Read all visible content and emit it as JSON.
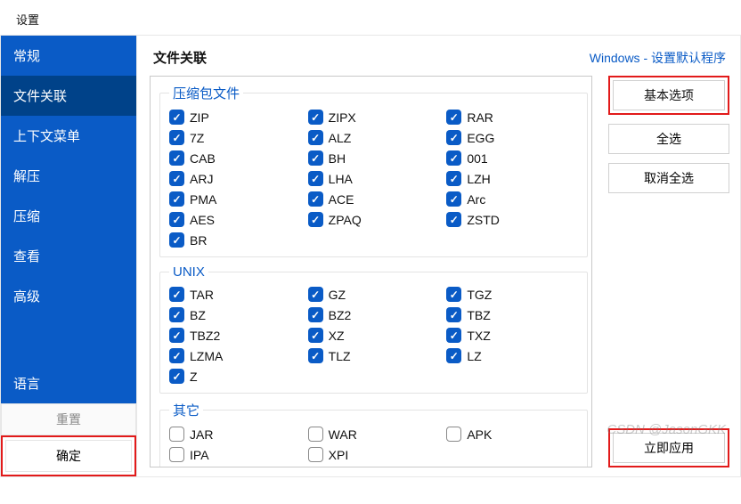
{
  "window": {
    "title": "设置"
  },
  "sidebar": {
    "items": [
      {
        "label": "常规"
      },
      {
        "label": "文件关联"
      },
      {
        "label": "上下文菜单"
      },
      {
        "label": "解压"
      },
      {
        "label": "压缩"
      },
      {
        "label": "查看"
      },
      {
        "label": "高级"
      }
    ],
    "active_index": 1,
    "language_label": "语言",
    "reset_label": "重置",
    "ok_label": "确定"
  },
  "main": {
    "title": "文件关联",
    "link_label": "Windows - 设置默认程序",
    "groups": [
      {
        "legend": "压缩包文件",
        "items": [
          {
            "label": "ZIP",
            "checked": true
          },
          {
            "label": "ZIPX",
            "checked": true
          },
          {
            "label": "RAR",
            "checked": true
          },
          {
            "label": "7Z",
            "checked": true
          },
          {
            "label": "ALZ",
            "checked": true
          },
          {
            "label": "EGG",
            "checked": true
          },
          {
            "label": "CAB",
            "checked": true
          },
          {
            "label": "BH",
            "checked": true
          },
          {
            "label": "001",
            "checked": true
          },
          {
            "label": "ARJ",
            "checked": true
          },
          {
            "label": "LHA",
            "checked": true
          },
          {
            "label": "LZH",
            "checked": true
          },
          {
            "label": "PMA",
            "checked": true
          },
          {
            "label": "ACE",
            "checked": true
          },
          {
            "label": "Arc",
            "checked": true
          },
          {
            "label": "AES",
            "checked": true
          },
          {
            "label": "ZPAQ",
            "checked": true
          },
          {
            "label": "ZSTD",
            "checked": true
          },
          {
            "label": "BR",
            "checked": true
          }
        ]
      },
      {
        "legend": "UNIX",
        "items": [
          {
            "label": "TAR",
            "checked": true
          },
          {
            "label": "GZ",
            "checked": true
          },
          {
            "label": "TGZ",
            "checked": true
          },
          {
            "label": "BZ",
            "checked": true
          },
          {
            "label": "BZ2",
            "checked": true
          },
          {
            "label": "TBZ",
            "checked": true
          },
          {
            "label": "TBZ2",
            "checked": true
          },
          {
            "label": "XZ",
            "checked": true
          },
          {
            "label": "TXZ",
            "checked": true
          },
          {
            "label": "LZMA",
            "checked": true
          },
          {
            "label": "TLZ",
            "checked": true
          },
          {
            "label": "LZ",
            "checked": true
          },
          {
            "label": "Z",
            "checked": true
          }
        ]
      },
      {
        "legend": "其它",
        "items": [
          {
            "label": "JAR",
            "checked": false
          },
          {
            "label": "WAR",
            "checked": false
          },
          {
            "label": "APK",
            "checked": false
          },
          {
            "label": "IPA",
            "checked": false
          },
          {
            "label": "XPI",
            "checked": false
          }
        ]
      }
    ],
    "actions": {
      "basic_label": "基本选项",
      "select_all_label": "全选",
      "deselect_all_label": "取消全选",
      "apply_label": "立即应用"
    }
  },
  "watermark": "CSDN @JasonGKK",
  "colors": {
    "accent": "#0a5bc6",
    "accent_dark": "#004289",
    "highlight_border": "#e21a1a"
  }
}
